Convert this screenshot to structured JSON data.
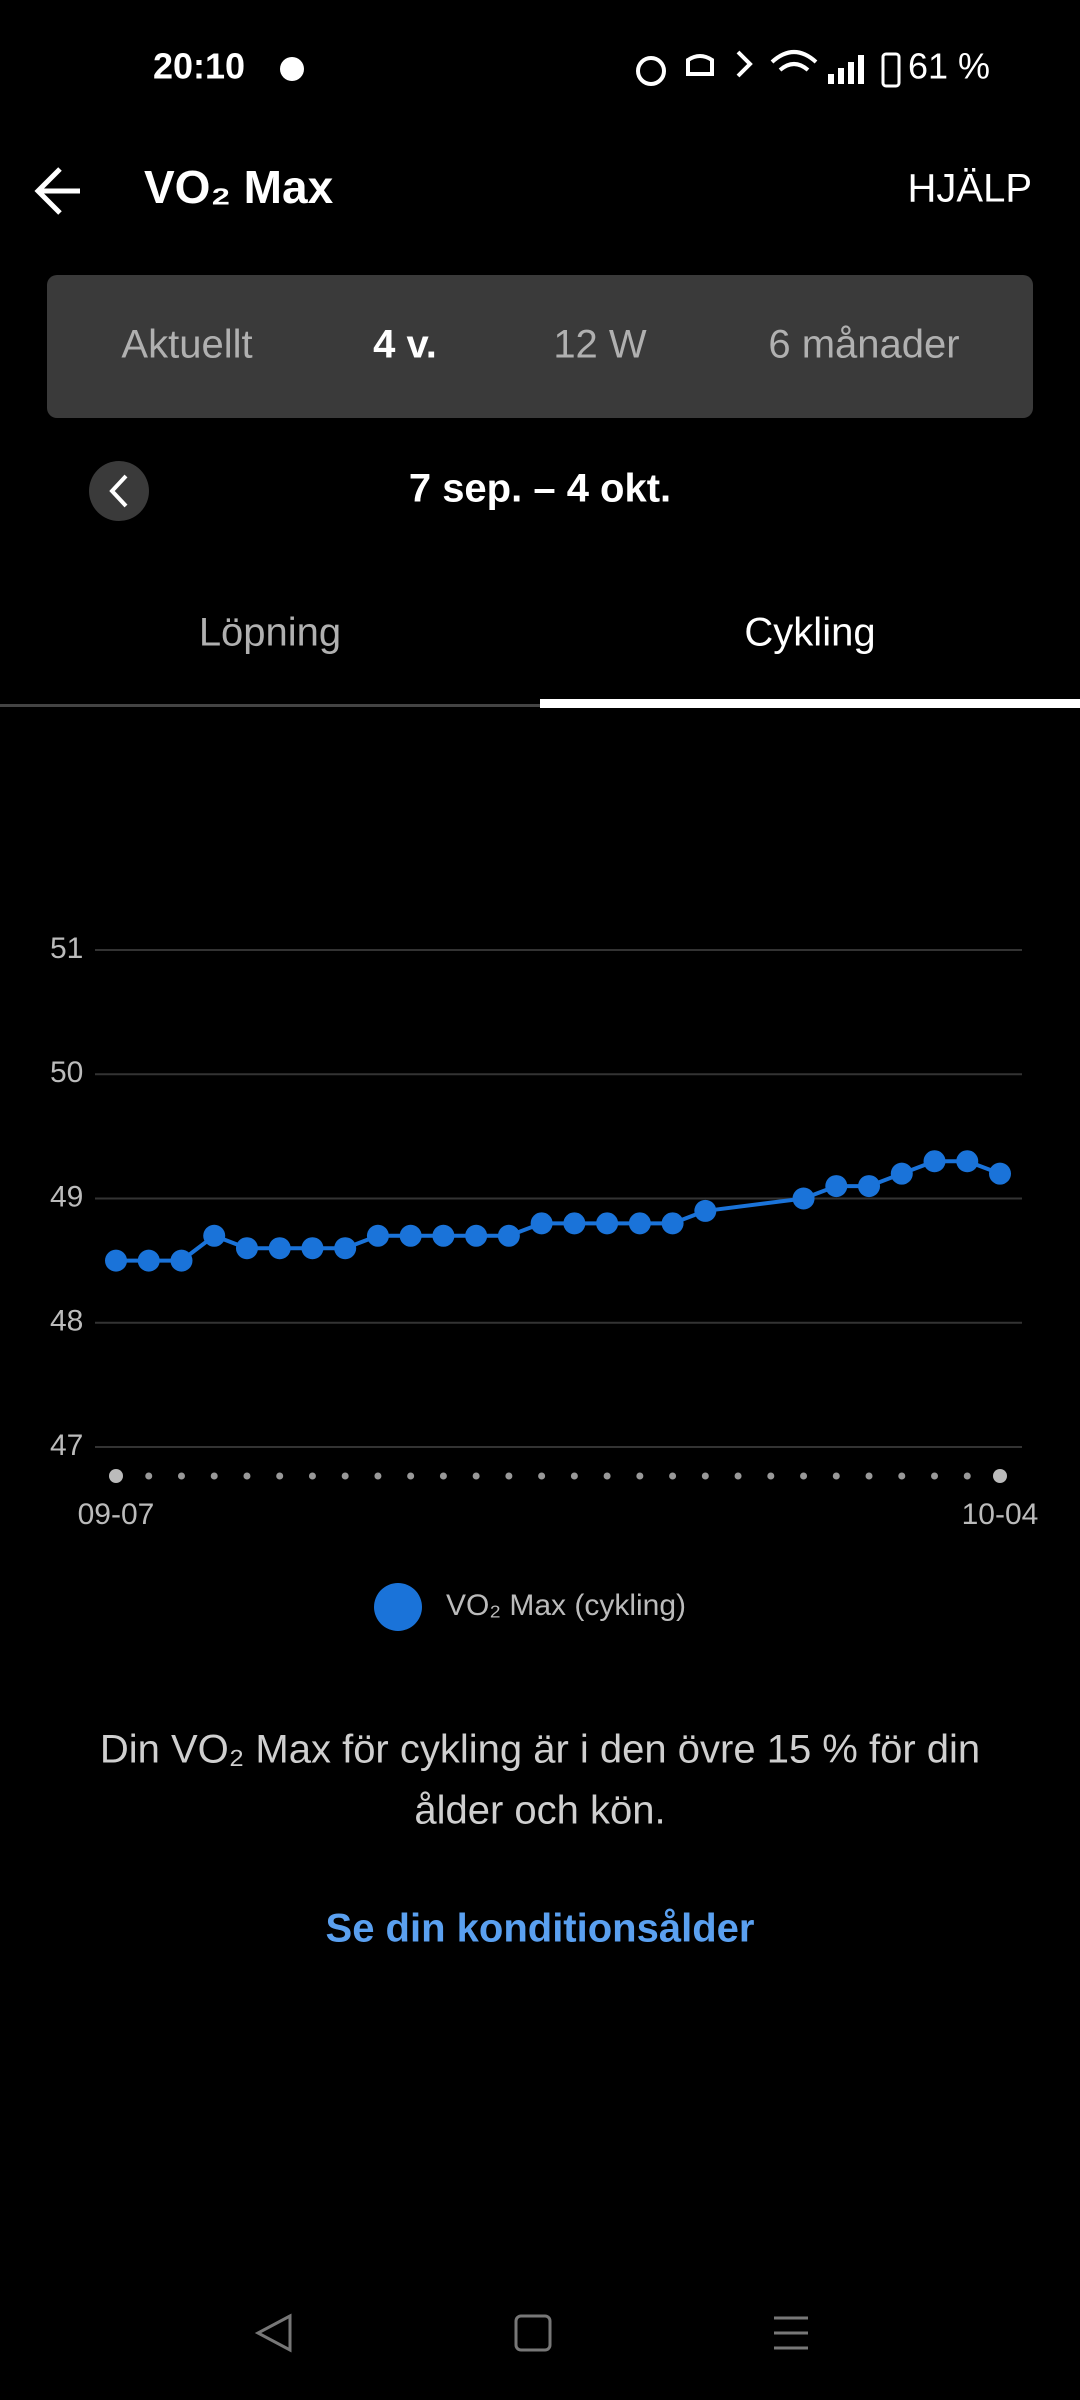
{
  "status_bar": {
    "time": "20:10",
    "battery": "61 %"
  },
  "header": {
    "title": "VO₂ Max",
    "help": "HJÄLP"
  },
  "periods": [
    "Aktuellt",
    "4 v.",
    "12 W",
    "6 månader"
  ],
  "date_range": "7 sep. – 4 okt.",
  "tabs": [
    "Löpning",
    "Cykling"
  ],
  "chart_data": {
    "type": "line",
    "categories": [
      "09-07",
      null,
      null,
      null,
      null,
      null,
      null,
      null,
      null,
      null,
      null,
      null,
      null,
      null,
      null,
      null,
      null,
      null,
      null,
      null,
      null,
      null,
      null,
      null,
      null,
      null,
      null,
      "10-04"
    ],
    "series": [
      {
        "name": "VO₂ Max (cykling)",
        "color": "#1a73d9",
        "values": [
          48.5,
          48.5,
          48.5,
          48.7,
          48.6,
          48.6,
          48.6,
          48.6,
          48.7,
          48.7,
          48.7,
          48.7,
          48.7,
          48.8,
          48.8,
          48.8,
          48.8,
          48.8,
          48.9,
          null,
          null,
          49.0,
          49.1,
          49.1,
          49.2,
          49.3,
          49.3,
          49.2
        ]
      }
    ],
    "ylim": [
      47,
      51
    ],
    "yticks": [
      47,
      48,
      49,
      50,
      51
    ],
    "grid": true
  },
  "summary_lines": [
    "Din VO₂ Max för cykling är i den övre 15 % för din",
    "ålder och kön."
  ],
  "link": "Se din konditionsålder"
}
